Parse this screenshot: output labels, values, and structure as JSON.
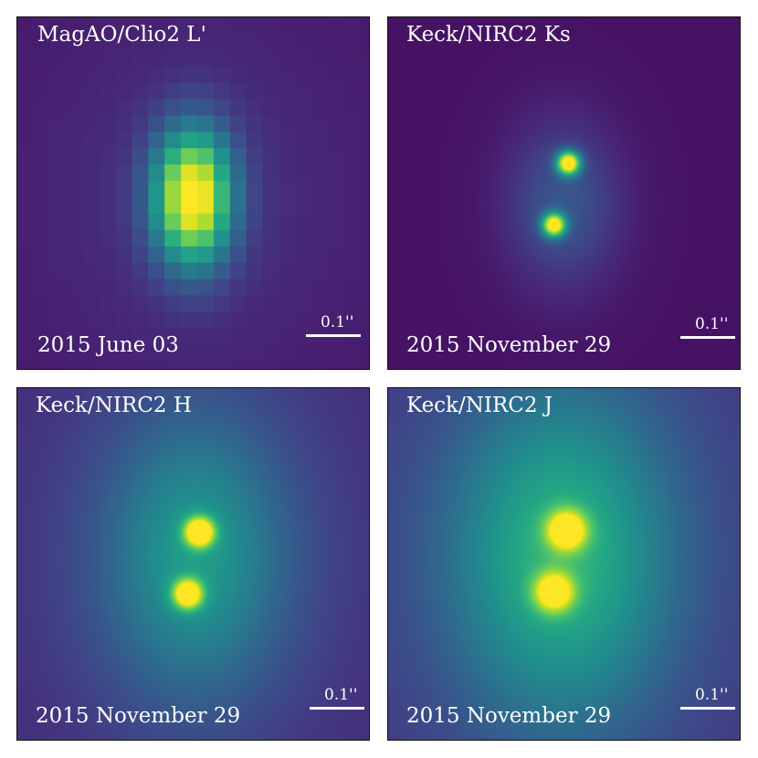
{
  "panels": [
    {
      "id": "lprime",
      "title": "MagAO/Clio2 L'",
      "date": "2015 June 03",
      "scale_label": "0.1''",
      "mode": "pixelated-blob"
    },
    {
      "id": "ks",
      "title": "Keck/NIRC2 Ks",
      "date": "2015 November 29",
      "scale_label": "0.1''",
      "mode": "binary-sharp"
    },
    {
      "id": "h",
      "title": "Keck/NIRC2 H",
      "date": "2015 November 29",
      "scale_label": "0.1''",
      "mode": "binary-halo"
    },
    {
      "id": "j",
      "title": "Keck/NIRC2 J",
      "date": "2015 November 29",
      "scale_label": "0.1''",
      "mode": "binary-broad"
    }
  ],
  "colormap": "viridis"
}
